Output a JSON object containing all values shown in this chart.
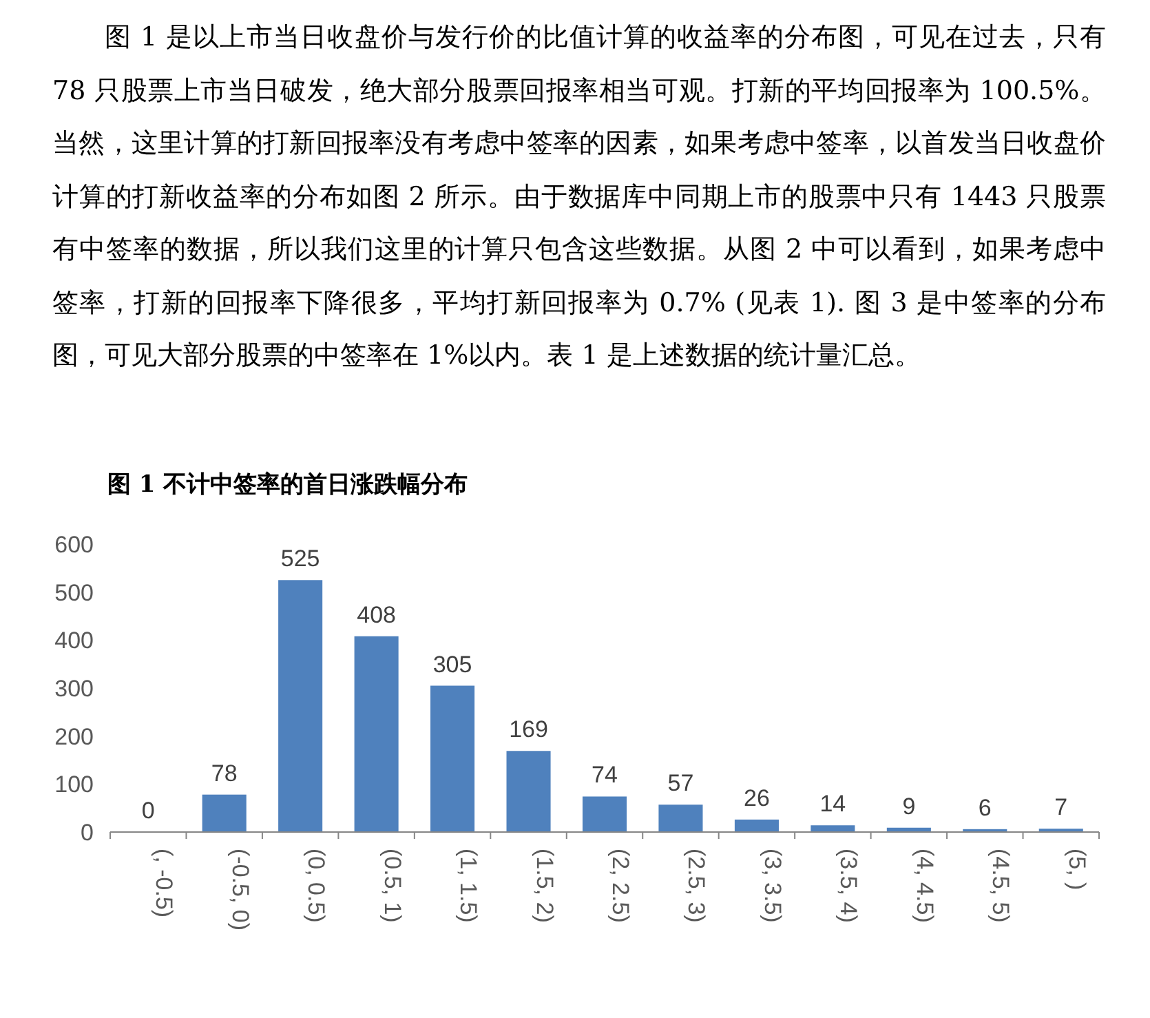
{
  "chart_data": {
    "type": "bar",
    "title": "图 1  不计中签率的首日涨跌幅分布",
    "annotations": [
      "图 1 是以上市当日收盘价与发行价的比值计算的收益率的分布图，可见在过去，只有 78 只股票上市当日破发，绝大部分股票回报率相当可观。打新的平均回报率为 100.5%。当然，这里计算的打新回报率没有考虑中签率的因素，如果考虑中签率，以首发当日收盘价计算的打新收益率的分布如图 2 所示。由于数据库中同期上市的股票中只有 1443 只股票有中签率的数据，所以我们这里的计算只包含这些数据。从图 2 中可以看到，如果考虑中签率，打新的回报率下降很多，平均打新回报率为 0.7% (见表 1). 图 3 是中签率的分布图，可见大部分股票的中签率在 1%以内。表 1 是上述数据的统计量汇总。"
    ],
    "categories": [
      "(, -0.5)",
      "(-0.5, 0)",
      "(0, 0.5)",
      "(0.5, 1)",
      "(1, 1.5)",
      "(1.5, 2)",
      "(2, 2.5)",
      "(2.5, 3)",
      "(3, 3.5)",
      "(3.5, 4)",
      "(4, 4.5)",
      "(4.5, 5)",
      "(5, )"
    ],
    "values": [
      0,
      78,
      525,
      408,
      305,
      169,
      74,
      57,
      26,
      14,
      9,
      6,
      7
    ],
    "color": "#4f81bd",
    "ylim": [
      0,
      600
    ],
    "yticks": [
      0,
      100,
      200,
      300,
      400,
      500,
      600
    ],
    "data_labels": true
  }
}
